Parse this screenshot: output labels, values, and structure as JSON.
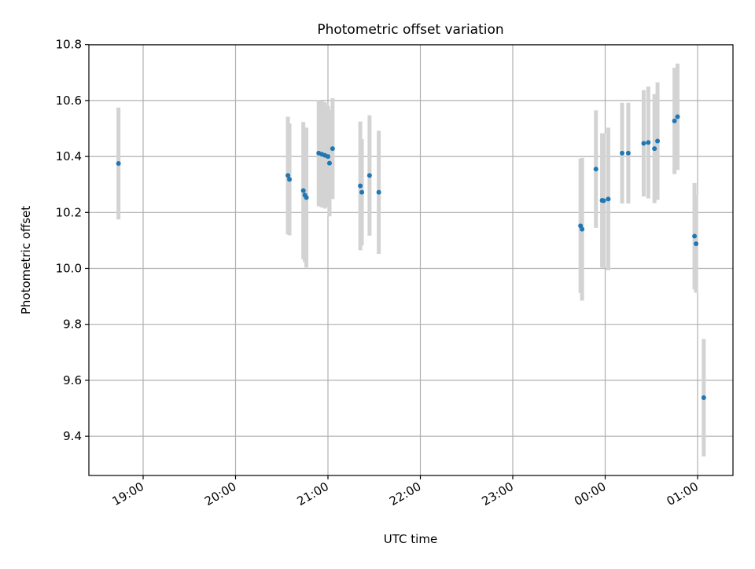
{
  "chart_data": {
    "type": "scatter",
    "title": "Photometric offset variation",
    "xlabel": "UTC time",
    "ylabel": "Photometric offset",
    "x_range": [
      "18:42",
      "01:13"
    ],
    "ylim": [
      9.27,
      10.8
    ],
    "x_ticks": [
      "19:00",
      "20:00",
      "21:00",
      "22:00",
      "23:00",
      "00:00",
      "01:00"
    ],
    "y_ticks": [
      "9.4",
      "9.6",
      "9.8",
      "10.0",
      "10.2",
      "10.4",
      "10.6",
      "10.8"
    ],
    "grid": true,
    "legend": "none",
    "colors": {
      "point": "#1f77b4",
      "errorbar": "#d3d3d3",
      "grid": "#b0b0b0"
    },
    "points": [
      {
        "time": "18:44",
        "y": 10.375,
        "err": 0.2
      },
      {
        "time": "20:34",
        "y": 10.332,
        "err": 0.21
      },
      {
        "time": "20:35",
        "y": 10.318,
        "err": 0.2
      },
      {
        "time": "20:44",
        "y": 10.278,
        "err": 0.245
      },
      {
        "time": "20:45",
        "y": 10.262,
        "err": 0.24
      },
      {
        "time": "20:46",
        "y": 10.253,
        "err": 0.25
      },
      {
        "time": "20:54",
        "y": 10.412,
        "err": 0.19
      },
      {
        "time": "20:56",
        "y": 10.408,
        "err": 0.19
      },
      {
        "time": "20:58",
        "y": 10.404,
        "err": 0.19
      },
      {
        "time": "21:00",
        "y": 10.4,
        "err": 0.18
      },
      {
        "time": "21:01",
        "y": 10.376,
        "err": 0.19
      },
      {
        "time": "21:03",
        "y": 10.428,
        "err": 0.18
      },
      {
        "time": "21:21",
        "y": 10.295,
        "err": 0.23
      },
      {
        "time": "21:22",
        "y": 10.272,
        "err": 0.19
      },
      {
        "time": "21:27",
        "y": 10.332,
        "err": 0.215
      },
      {
        "time": "21:33",
        "y": 10.272,
        "err": 0.22
      },
      {
        "time": "23:44",
        "y": 10.152,
        "err": 0.24
      },
      {
        "time": "23:45",
        "y": 10.14,
        "err": 0.255
      },
      {
        "time": "23:54",
        "y": 10.355,
        "err": 0.21
      },
      {
        "time": "23:58",
        "y": 10.243,
        "err": 0.24
      },
      {
        "time": "23:59",
        "y": 10.242,
        "err": 0.24
      },
      {
        "time": "00:02",
        "y": 10.248,
        "err": 0.255
      },
      {
        "time": "00:11",
        "y": 10.412,
        "err": 0.18
      },
      {
        "time": "00:15",
        "y": 10.412,
        "err": 0.18
      },
      {
        "time": "00:25",
        "y": 10.447,
        "err": 0.19
      },
      {
        "time": "00:28",
        "y": 10.45,
        "err": 0.2
      },
      {
        "time": "00:32",
        "y": 10.428,
        "err": 0.195
      },
      {
        "time": "00:34",
        "y": 10.455,
        "err": 0.21
      },
      {
        "time": "00:45",
        "y": 10.527,
        "err": 0.19
      },
      {
        "time": "00:47",
        "y": 10.542,
        "err": 0.19
      },
      {
        "time": "00:58",
        "y": 10.115,
        "err": 0.19
      },
      {
        "time": "00:59",
        "y": 10.088,
        "err": 0.175
      },
      {
        "time": "01:04",
        "y": 9.538,
        "err": 0.21
      }
    ]
  }
}
